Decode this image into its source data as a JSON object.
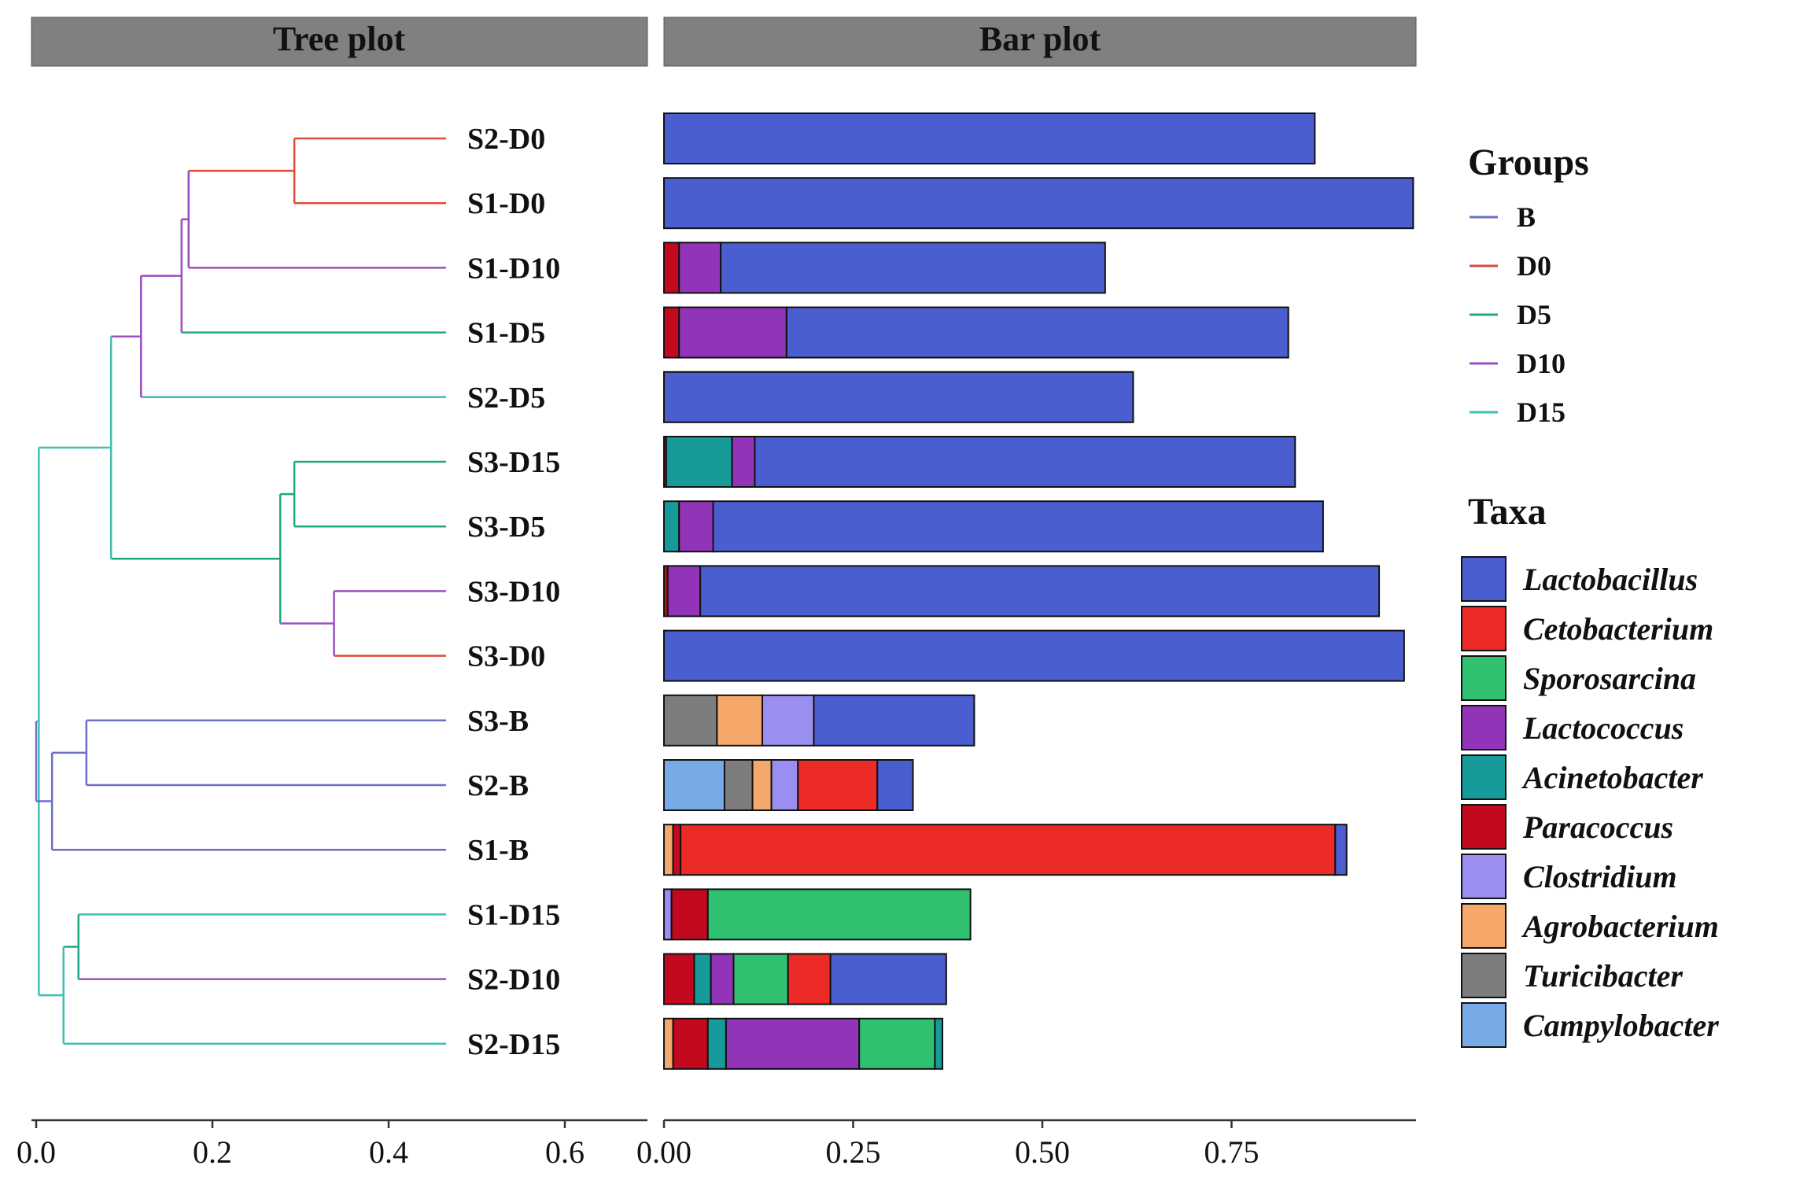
{
  "chart_data": [
    {
      "type": "dendrogram",
      "panel_title": "Tree plot",
      "xlim": [
        0,
        0.7
      ],
      "xticks": [
        "0.0",
        "0.2",
        "0.4",
        "0.6"
      ],
      "xtick_values": [
        0,
        0.2,
        0.4,
        0.6
      ],
      "leaves": [
        "S2-D0",
        "S1-D0",
        "S1-D10",
        "S1-D5",
        "S2-D5",
        "S3-D15",
        "S3-D5",
        "S3-D10",
        "S3-D0",
        "S3-B",
        "S2-B",
        "S1-B",
        "S1-D15",
        "S2-D10",
        "S2-D15"
      ],
      "leaf_groups": [
        "D0",
        "D0",
        "D10",
        "D5",
        "D15",
        "D5",
        "D5",
        "D10",
        "D0",
        "B",
        "B",
        "B",
        "D15",
        "D10",
        "D15"
      ],
      "merges": [
        {
          "id": "n1",
          "children": [
            "S2-D0",
            "S1-D0"
          ],
          "height": 0.293,
          "group": "D0"
        },
        {
          "id": "n2",
          "children": [
            "n1",
            "S1-D10"
          ],
          "height": 0.173,
          "group": "D10"
        },
        {
          "id": "n3",
          "children": [
            "n2",
            "S1-D5"
          ],
          "height": 0.165,
          "group": "D10"
        },
        {
          "id": "n4",
          "children": [
            "n3",
            "S2-D5"
          ],
          "height": 0.119,
          "group": "D10"
        },
        {
          "id": "n5",
          "children": [
            "S3-D15",
            "S3-D5"
          ],
          "height": 0.293,
          "group": "D5"
        },
        {
          "id": "n6",
          "children": [
            "S3-D10",
            "S3-D0"
          ],
          "height": 0.338,
          "group": "D10"
        },
        {
          "id": "n7",
          "children": [
            "n5",
            "n6"
          ],
          "height": 0.277,
          "group": "D5"
        },
        {
          "id": "n8",
          "children": [
            "n4",
            "n7"
          ],
          "height": 0.085,
          "group": "D15"
        },
        {
          "id": "n9",
          "children": [
            "S3-B",
            "S2-B"
          ],
          "height": 0.057,
          "group": "B"
        },
        {
          "id": "n10",
          "children": [
            "n9",
            "S1-B"
          ],
          "height": 0.018,
          "group": "B"
        },
        {
          "id": "n11",
          "children": [
            "S1-D15",
            "S2-D10"
          ],
          "height": 0.048,
          "group": "D5"
        },
        {
          "id": "n12",
          "children": [
            "n11",
            "S2-D15"
          ],
          "height": 0.031,
          "group": "D15"
        },
        {
          "id": "n13",
          "children": [
            "n8",
            "n12"
          ],
          "height": 0.003,
          "group": "D15"
        },
        {
          "id": "n14",
          "children": [
            "n10",
            "n13"
          ],
          "height": 0.0,
          "group": "B"
        }
      ]
    },
    {
      "type": "bar",
      "orientation": "horizontal",
      "stacked": true,
      "panel_title": "Bar plot",
      "xlim": [
        0,
        0.99
      ],
      "xticks": [
        "0.00",
        "0.25",
        "0.50",
        "0.75"
      ],
      "xtick_values": [
        0,
        0.25,
        0.5,
        0.75
      ],
      "categories": [
        "S2-D0",
        "S1-D0",
        "S1-D10",
        "S1-D5",
        "S2-D5",
        "S3-D15",
        "S3-D5",
        "S3-D10",
        "S3-D0",
        "S3-B",
        "S2-B",
        "S1-B",
        "S1-D15",
        "S2-D10",
        "S2-D15"
      ],
      "segments": [
        [
          {
            "taxon": "Lactobacillus",
            "value": 0.86
          }
        ],
        [
          {
            "taxon": "Lactobacillus",
            "value": 0.99
          }
        ],
        [
          {
            "taxon": "Paracoccus",
            "value": 0.02
          },
          {
            "taxon": "Lactococcus",
            "value": 0.055
          },
          {
            "taxon": "Lactobacillus",
            "value": 0.508
          }
        ],
        [
          {
            "taxon": "Paracoccus",
            "value": 0.02
          },
          {
            "taxon": "Lactococcus",
            "value": 0.142
          },
          {
            "taxon": "Lactobacillus",
            "value": 0.663
          }
        ],
        [
          {
            "taxon": "Lactobacillus",
            "value": 0.62
          }
        ],
        [
          {
            "taxon": "Paracoccus",
            "value": 0.003
          },
          {
            "taxon": "Acinetobacter",
            "value": 0.087
          },
          {
            "taxon": "Lactococcus",
            "value": 0.03
          },
          {
            "taxon": "Lactobacillus",
            "value": 0.714
          }
        ],
        [
          {
            "taxon": "Acinetobacter",
            "value": 0.02
          },
          {
            "taxon": "Lactococcus",
            "value": 0.045
          },
          {
            "taxon": "Lactobacillus",
            "value": 0.806
          }
        ],
        [
          {
            "taxon": "Paracoccus",
            "value": 0.005
          },
          {
            "taxon": "Lactococcus",
            "value": 0.043
          },
          {
            "taxon": "Lactobacillus",
            "value": 0.897
          }
        ],
        [
          {
            "taxon": "Lactobacillus",
            "value": 0.978
          }
        ],
        [
          {
            "taxon": "Turicibacter",
            "value": 0.07
          },
          {
            "taxon": "Agrobacterium",
            "value": 0.06
          },
          {
            "taxon": "Clostridium",
            "value": 0.068
          },
          {
            "taxon": "Lactobacillus",
            "value": 0.212
          }
        ],
        [
          {
            "taxon": "Campylobacter",
            "value": 0.08
          },
          {
            "taxon": "Turicibacter",
            "value": 0.037
          },
          {
            "taxon": "Agrobacterium",
            "value": 0.025
          },
          {
            "taxon": "Clostridium",
            "value": 0.035
          },
          {
            "taxon": "Cetobacterium",
            "value": 0.105
          },
          {
            "taxon": "Lactobacillus",
            "value": 0.047
          }
        ],
        [
          {
            "taxon": "Agrobacterium",
            "value": 0.012
          },
          {
            "taxon": "Paracoccus",
            "value": 0.01
          },
          {
            "taxon": "Cetobacterium",
            "value": 0.865
          },
          {
            "taxon": "Lactobacillus",
            "value": 0.015
          }
        ],
        [
          {
            "taxon": "Clostridium",
            "value": 0.01
          },
          {
            "taxon": "Paracoccus",
            "value": 0.048
          },
          {
            "taxon": "Sporosarcina",
            "value": 0.347
          }
        ],
        [
          {
            "taxon": "Paracoccus",
            "value": 0.04
          },
          {
            "taxon": "Acinetobacter",
            "value": 0.022
          },
          {
            "taxon": "Lactococcus",
            "value": 0.03
          },
          {
            "taxon": "Sporosarcina",
            "value": 0.072
          },
          {
            "taxon": "Cetobacterium",
            "value": 0.056
          },
          {
            "taxon": "Lactobacillus",
            "value": 0.153
          }
        ],
        [
          {
            "taxon": "Agrobacterium",
            "value": 0.012
          },
          {
            "taxon": "Paracoccus",
            "value": 0.046
          },
          {
            "taxon": "Acinetobacter",
            "value": 0.024
          },
          {
            "taxon": "Lactococcus",
            "value": 0.176
          },
          {
            "taxon": "Sporosarcina",
            "value": 0.1
          },
          {
            "taxon": "Acinetobacter",
            "value": 0.01
          }
        ]
      ]
    }
  ],
  "legend": {
    "groups_title": "Groups",
    "groups": [
      {
        "name": "B",
        "color": "#6b6fc6"
      },
      {
        "name": "D0",
        "color": "#e04b3c"
      },
      {
        "name": "D5",
        "color": "#20a882"
      },
      {
        "name": "D10",
        "color": "#9b4fc0"
      },
      {
        "name": "D15",
        "color": "#3fbfb5"
      }
    ],
    "taxa_title": "Taxa",
    "taxa": [
      {
        "name": "Lactobacillus",
        "color": "#4b5ed0"
      },
      {
        "name": "Cetobacterium",
        "color": "#ec2b26"
      },
      {
        "name": "Sporosarcina",
        "color": "#2fc070"
      },
      {
        "name": "Lactococcus",
        "color": "#9234b8"
      },
      {
        "name": "Acinetobacter",
        "color": "#179a9a"
      },
      {
        "name": "Paracoccus",
        "color": "#c2091e"
      },
      {
        "name": "Clostridium",
        "color": "#9a8ff0"
      },
      {
        "name": "Agrobacterium",
        "color": "#f5a86a"
      },
      {
        "name": "Turicibacter",
        "color": "#7d7d7d"
      },
      {
        "name": "Campylobacter",
        "color": "#78aae8"
      }
    ]
  }
}
